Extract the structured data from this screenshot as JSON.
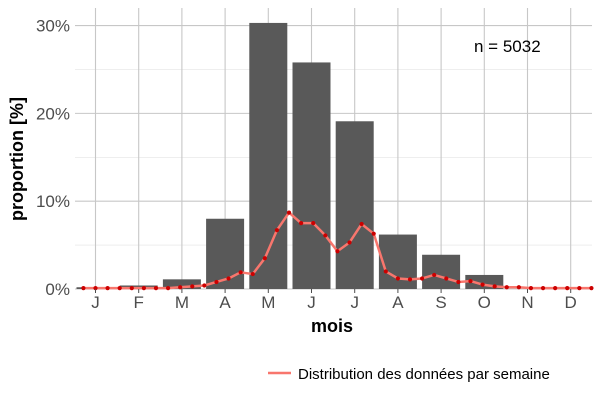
{
  "chart_data": {
    "type": "bar",
    "xlabel": "mois",
    "ylabel": "proportion [%]",
    "categories": [
      "J",
      "F",
      "M",
      "A",
      "M",
      "J",
      "J",
      "A",
      "S",
      "O",
      "N",
      "D"
    ],
    "values": [
      0.2,
      0.4,
      1.1,
      8.0,
      30.3,
      25.8,
      19.1,
      6.2,
      3.9,
      1.6,
      0.0,
      0.0
    ],
    "ylim": [
      0,
      32
    ],
    "yticks": [
      0,
      10,
      20,
      30
    ],
    "ytick_labels": [
      "0%",
      "10%",
      "20%",
      "30%"
    ],
    "grid": true,
    "annotation": "n = 5032",
    "bar_color": "#595959",
    "weekly_series": {
      "name": "Distribution des données par semaine",
      "color": "#f8766d",
      "point_color": "#cc0000",
      "x": [
        0.72,
        1.0,
        1.28,
        1.56,
        1.84,
        2.12,
        2.4,
        2.68,
        2.96,
        3.24,
        3.52,
        3.8,
        4.08,
        4.36,
        4.64,
        4.92,
        5.2,
        5.48,
        5.76,
        6.04,
        6.32,
        6.6,
        6.88,
        7.16,
        7.44,
        7.72,
        8.0,
        8.28,
        8.56,
        8.84,
        9.12,
        9.4,
        9.68,
        9.96,
        10.24,
        10.52,
        10.8,
        11.08,
        11.36,
        11.64,
        11.92,
        12.2,
        12.48
      ],
      "y": [
        0.1,
        0.1,
        0.1,
        0.1,
        0.1,
        0.1,
        0.1,
        0.1,
        0.2,
        0.3,
        0.4,
        0.8,
        1.2,
        1.9,
        1.7,
        3.5,
        6.7,
        8.7,
        7.5,
        7.5,
        6.1,
        4.3,
        5.3,
        7.4,
        6.3,
        2.0,
        1.2,
        1.1,
        1.2,
        1.6,
        1.2,
        0.8,
        0.9,
        0.5,
        0.3,
        0.2,
        0.2,
        0.1,
        0.1,
        0.1,
        0.1,
        0.1,
        0.1
      ]
    }
  }
}
